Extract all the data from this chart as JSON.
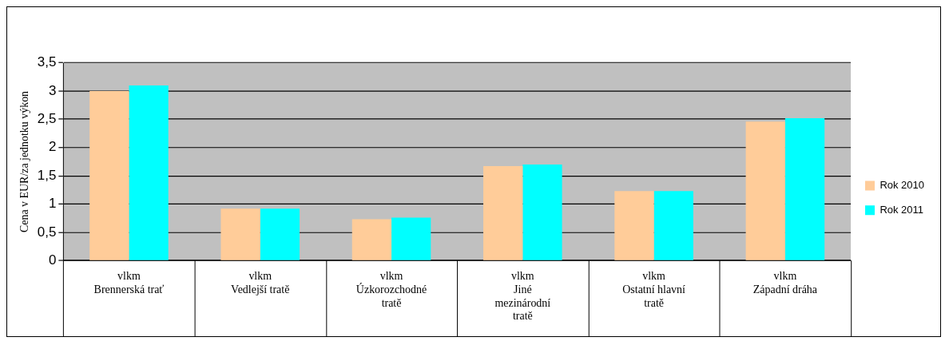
{
  "chart_data": {
    "type": "bar",
    "ylabel": "Cena v EUR/za jednotku výkon",
    "categories": [
      "vlkm\nBrennerská trať",
      "vlkm\nVedlejší tratě",
      "vlkm\nÚzkorozchodné\ntratě",
      "vlkm\nJiné\nmezinárodní\ntratě",
      "vlkm\nOstatní hlavní\ntratě",
      "vlkm\nZápadní dráha"
    ],
    "series": [
      {
        "name": "Rok 2010",
        "color": "#ffcc99",
        "values": [
          3.0,
          0.92,
          0.73,
          1.67,
          1.23,
          2.46
        ]
      },
      {
        "name": "Rok 2011",
        "color": "#00ffff",
        "values": [
          3.1,
          0.92,
          0.76,
          1.7,
          1.23,
          2.52
        ]
      }
    ],
    "ylim": [
      0,
      3.5
    ],
    "yticks": [
      {
        "value": 0,
        "label": "0"
      },
      {
        "value": 0.5,
        "label": "0,5"
      },
      {
        "value": 1,
        "label": "1"
      },
      {
        "value": 1.5,
        "label": "1,5"
      },
      {
        "value": 2,
        "label": "2"
      },
      {
        "value": 2.5,
        "label": "2,5"
      },
      {
        "value": 3,
        "label": "3"
      },
      {
        "value": 3.5,
        "label": "3,5"
      }
    ],
    "grid": "y",
    "legend": "right"
  }
}
